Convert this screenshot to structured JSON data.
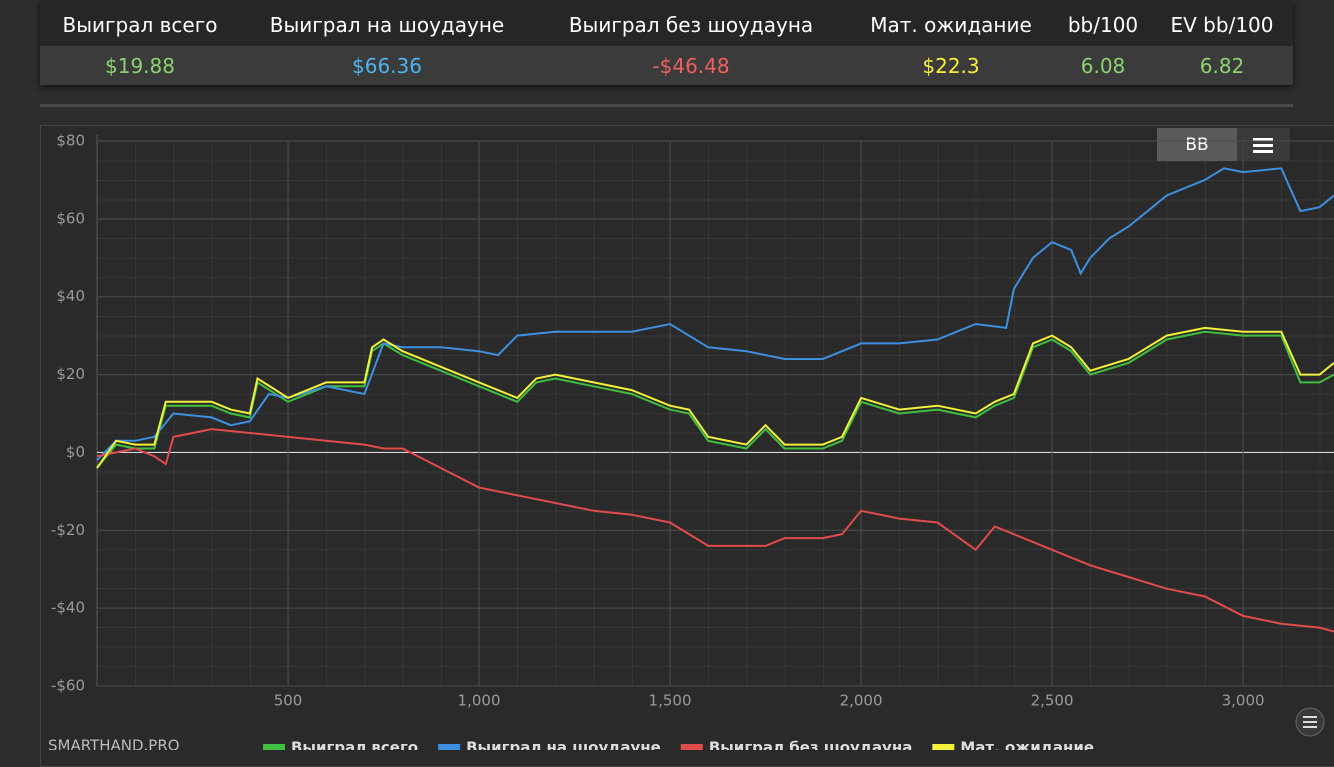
{
  "stats": {
    "headers": [
      "Выиграл всего",
      "Выиграл на шоудауне",
      "Выиграл без шоудауна",
      "Мат. ожидание",
      "bb/100",
      "EV bb/100"
    ],
    "values": [
      "$19.88",
      "$66.36",
      "-$46.48",
      "$22.3",
      "6.08",
      "6.82"
    ]
  },
  "toolbar": {
    "unit_button": "BB"
  },
  "brand": "SMARTHAND.PRO",
  "chart_data": {
    "type": "line",
    "xlim": [
      0,
      3238
    ],
    "ylim": [
      -60,
      80
    ],
    "xticks": [
      500,
      {
        "value": 1000,
        "label": "1,000"
      },
      {
        "value": 1500,
        "label": "1,500"
      },
      {
        "value": 2000,
        "label": "2,000"
      },
      {
        "value": 2500,
        "label": "2,500"
      },
      {
        "value": 3000,
        "label": "3,000"
      }
    ],
    "yticks": [
      {
        "value": 80,
        "label": "$80"
      },
      {
        "value": 60,
        "label": "$60"
      },
      {
        "value": 40,
        "label": "$40"
      },
      {
        "value": 20,
        "label": "$20"
      },
      {
        "value": 0,
        "label": "$0"
      },
      {
        "value": -20,
        "label": "-$20"
      },
      {
        "value": -40,
        "label": "-$40"
      },
      {
        "value": -60,
        "label": "-$60"
      }
    ],
    "grid": true,
    "series": [
      {
        "name": "Выиграл всего",
        "color": "#3fbf3f",
        "x": [
          0,
          50,
          100,
          150,
          180,
          200,
          300,
          350,
          400,
          420,
          500,
          600,
          700,
          720,
          750,
          800,
          900,
          1000,
          1100,
          1150,
          1200,
          1300,
          1400,
          1500,
          1550,
          1600,
          1700,
          1750,
          1800,
          1900,
          1950,
          2000,
          2100,
          2200,
          2300,
          2350,
          2400,
          2450,
          2500,
          2550,
          2600,
          2700,
          2800,
          2900,
          3000,
          3100,
          3150,
          3200,
          3238
        ],
        "values": [
          -4,
          2,
          1,
          1,
          12,
          12,
          12,
          10,
          9,
          18,
          13,
          17,
          17,
          26,
          28,
          25,
          21,
          17,
          13,
          18,
          19,
          17,
          15,
          11,
          10,
          3,
          1,
          6,
          1,
          1,
          3,
          13,
          10,
          11,
          9,
          12,
          14,
          27,
          29,
          26,
          20,
          23,
          29,
          31,
          30,
          30,
          18,
          18,
          20
        ]
      },
      {
        "name": "Выиграл на шоудауне",
        "color": "#3d8fe0",
        "x": [
          0,
          50,
          100,
          150,
          200,
          300,
          350,
          400,
          450,
          500,
          600,
          700,
          750,
          800,
          900,
          1000,
          1050,
          1100,
          1200,
          1300,
          1400,
          1500,
          1600,
          1700,
          1800,
          1900,
          2000,
          2100,
          2200,
          2300,
          2380,
          2400,
          2450,
          2500,
          2550,
          2575,
          2600,
          2650,
          2700,
          2800,
          2900,
          2950,
          3000,
          3100,
          3150,
          3200,
          3238
        ],
        "values": [
          -2,
          3,
          3,
          4,
          10,
          9,
          7,
          8,
          15,
          14,
          17,
          15,
          28,
          27,
          27,
          26,
          25,
          30,
          31,
          31,
          31,
          33,
          27,
          26,
          24,
          24,
          28,
          28,
          29,
          33,
          32,
          42,
          50,
          54,
          52,
          46,
          50,
          55,
          58,
          66,
          70,
          73,
          72,
          73,
          62,
          63,
          66
        ]
      },
      {
        "name": "Выиграл без шоудауна",
        "color": "#e04b4b",
        "x": [
          0,
          50,
          100,
          150,
          180,
          200,
          300,
          400,
          500,
          600,
          700,
          750,
          800,
          900,
          1000,
          1100,
          1200,
          1300,
          1400,
          1500,
          1600,
          1700,
          1750,
          1800,
          1900,
          1950,
          2000,
          2100,
          2200,
          2300,
          2350,
          2400,
          2500,
          2600,
          2700,
          2800,
          2900,
          3000,
          3100,
          3200,
          3238
        ],
        "values": [
          -1,
          0,
          1,
          -1,
          -3,
          4,
          6,
          5,
          4,
          3,
          2,
          1,
          1,
          -4,
          -9,
          -11,
          -13,
          -15,
          -16,
          -18,
          -24,
          -24,
          -24,
          -22,
          -22,
          -21,
          -15,
          -17,
          -18,
          -25,
          -19,
          -21,
          -25,
          -29,
          -32,
          -35,
          -37,
          -42,
          -44,
          -45,
          -46
        ]
      },
      {
        "name": "Мат. ожидание",
        "color": "#f2f23a",
        "x": [
          0,
          50,
          100,
          150,
          180,
          200,
          300,
          350,
          400,
          420,
          500,
          600,
          700,
          720,
          750,
          800,
          900,
          1000,
          1100,
          1150,
          1200,
          1300,
          1400,
          1500,
          1550,
          1600,
          1700,
          1750,
          1800,
          1900,
          1950,
          2000,
          2100,
          2200,
          2300,
          2350,
          2400,
          2450,
          2500,
          2550,
          2600,
          2700,
          2800,
          2900,
          3000,
          3100,
          3150,
          3200,
          3238
        ],
        "values": [
          -4,
          3,
          2,
          2,
          13,
          13,
          13,
          11,
          10,
          19,
          14,
          18,
          18,
          27,
          29,
          26,
          22,
          18,
          14,
          19,
          20,
          18,
          16,
          12,
          11,
          4,
          2,
          7,
          2,
          2,
          4,
          14,
          11,
          12,
          10,
          13,
          15,
          28,
          30,
          27,
          21,
          24,
          30,
          32,
          31,
          31,
          20,
          20,
          23
        ]
      }
    ]
  }
}
